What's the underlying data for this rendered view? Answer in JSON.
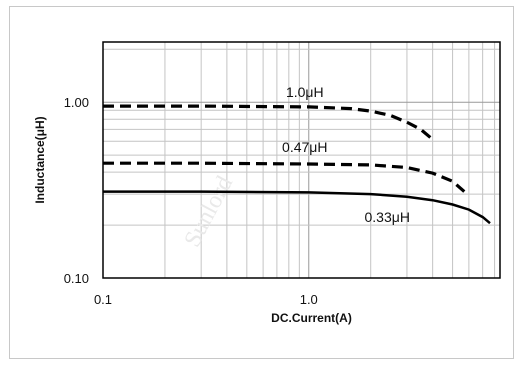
{
  "chart_data": {
    "type": "line",
    "xlabel": "DC.Current(A)",
    "ylabel": "Inductance(μH)",
    "x_scale": "log",
    "y_scale": "log",
    "xlim": [
      0.1,
      8.5
    ],
    "ylim": [
      0.1,
      2.2
    ],
    "x_ticks": [
      {
        "value": 0.1,
        "label": "0.1"
      },
      {
        "value": 1.0,
        "label": "1.0"
      }
    ],
    "y_ticks": [
      {
        "value": 0.1,
        "label": "0.10"
      },
      {
        "value": 1.0,
        "label": "1.00"
      }
    ],
    "grid": true,
    "watermark": "Sunlord",
    "series": [
      {
        "name": "1.0μH",
        "style": "dashed",
        "x": [
          0.1,
          0.3,
          1.0,
          1.6,
          2.0,
          2.5,
          3.0,
          3.5,
          3.9
        ],
        "y": [
          0.95,
          0.95,
          0.94,
          0.92,
          0.89,
          0.84,
          0.77,
          0.7,
          0.63
        ]
      },
      {
        "name": "0.47μH",
        "style": "dashed",
        "x": [
          0.1,
          0.3,
          1.0,
          2.0,
          3.0,
          4.0,
          5.0,
          5.7
        ],
        "y": [
          0.45,
          0.45,
          0.445,
          0.44,
          0.425,
          0.395,
          0.355,
          0.31
        ]
      },
      {
        "name": "0.33μH",
        "style": "solid",
        "x": [
          0.1,
          0.3,
          1.0,
          2.0,
          3.0,
          4.0,
          5.0,
          6.0,
          7.0,
          7.6
        ],
        "y": [
          0.31,
          0.31,
          0.307,
          0.3,
          0.29,
          0.277,
          0.262,
          0.245,
          0.222,
          0.205
        ]
      }
    ]
  }
}
